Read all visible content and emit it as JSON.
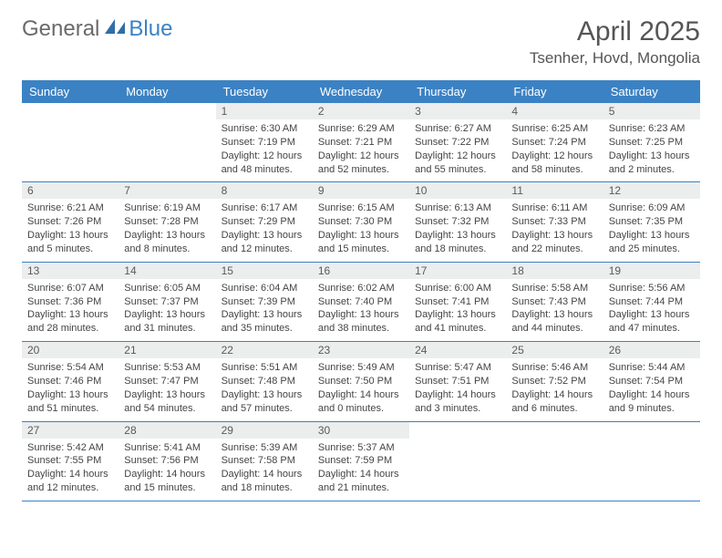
{
  "logo": {
    "text1": "General",
    "text2": "Blue",
    "icon_color": "#2f6ea8"
  },
  "header": {
    "month": "April 2025",
    "location": "Tsenher, Hovd, Mongolia"
  },
  "colors": {
    "header_bg": "#3b82c4",
    "header_text": "#ffffff",
    "daynum_bg": "#eceded",
    "border": "#3b82c4",
    "body_text": "#444444"
  },
  "day_names": [
    "Sunday",
    "Monday",
    "Tuesday",
    "Wednesday",
    "Thursday",
    "Friday",
    "Saturday"
  ],
  "weeks": [
    [
      null,
      null,
      {
        "n": "1",
        "sr": "6:30 AM",
        "ss": "7:19 PM",
        "dl": "12 hours and 48 minutes."
      },
      {
        "n": "2",
        "sr": "6:29 AM",
        "ss": "7:21 PM",
        "dl": "12 hours and 52 minutes."
      },
      {
        "n": "3",
        "sr": "6:27 AM",
        "ss": "7:22 PM",
        "dl": "12 hours and 55 minutes."
      },
      {
        "n": "4",
        "sr": "6:25 AM",
        "ss": "7:24 PM",
        "dl": "12 hours and 58 minutes."
      },
      {
        "n": "5",
        "sr": "6:23 AM",
        "ss": "7:25 PM",
        "dl": "13 hours and 2 minutes."
      }
    ],
    [
      {
        "n": "6",
        "sr": "6:21 AM",
        "ss": "7:26 PM",
        "dl": "13 hours and 5 minutes."
      },
      {
        "n": "7",
        "sr": "6:19 AM",
        "ss": "7:28 PM",
        "dl": "13 hours and 8 minutes."
      },
      {
        "n": "8",
        "sr": "6:17 AM",
        "ss": "7:29 PM",
        "dl": "13 hours and 12 minutes."
      },
      {
        "n": "9",
        "sr": "6:15 AM",
        "ss": "7:30 PM",
        "dl": "13 hours and 15 minutes."
      },
      {
        "n": "10",
        "sr": "6:13 AM",
        "ss": "7:32 PM",
        "dl": "13 hours and 18 minutes."
      },
      {
        "n": "11",
        "sr": "6:11 AM",
        "ss": "7:33 PM",
        "dl": "13 hours and 22 minutes."
      },
      {
        "n": "12",
        "sr": "6:09 AM",
        "ss": "7:35 PM",
        "dl": "13 hours and 25 minutes."
      }
    ],
    [
      {
        "n": "13",
        "sr": "6:07 AM",
        "ss": "7:36 PM",
        "dl": "13 hours and 28 minutes."
      },
      {
        "n": "14",
        "sr": "6:05 AM",
        "ss": "7:37 PM",
        "dl": "13 hours and 31 minutes."
      },
      {
        "n": "15",
        "sr": "6:04 AM",
        "ss": "7:39 PM",
        "dl": "13 hours and 35 minutes."
      },
      {
        "n": "16",
        "sr": "6:02 AM",
        "ss": "7:40 PM",
        "dl": "13 hours and 38 minutes."
      },
      {
        "n": "17",
        "sr": "6:00 AM",
        "ss": "7:41 PM",
        "dl": "13 hours and 41 minutes."
      },
      {
        "n": "18",
        "sr": "5:58 AM",
        "ss": "7:43 PM",
        "dl": "13 hours and 44 minutes."
      },
      {
        "n": "19",
        "sr": "5:56 AM",
        "ss": "7:44 PM",
        "dl": "13 hours and 47 minutes."
      }
    ],
    [
      {
        "n": "20",
        "sr": "5:54 AM",
        "ss": "7:46 PM",
        "dl": "13 hours and 51 minutes."
      },
      {
        "n": "21",
        "sr": "5:53 AM",
        "ss": "7:47 PM",
        "dl": "13 hours and 54 minutes."
      },
      {
        "n": "22",
        "sr": "5:51 AM",
        "ss": "7:48 PM",
        "dl": "13 hours and 57 minutes."
      },
      {
        "n": "23",
        "sr": "5:49 AM",
        "ss": "7:50 PM",
        "dl": "14 hours and 0 minutes."
      },
      {
        "n": "24",
        "sr": "5:47 AM",
        "ss": "7:51 PM",
        "dl": "14 hours and 3 minutes."
      },
      {
        "n": "25",
        "sr": "5:46 AM",
        "ss": "7:52 PM",
        "dl": "14 hours and 6 minutes."
      },
      {
        "n": "26",
        "sr": "5:44 AM",
        "ss": "7:54 PM",
        "dl": "14 hours and 9 minutes."
      }
    ],
    [
      {
        "n": "27",
        "sr": "5:42 AM",
        "ss": "7:55 PM",
        "dl": "14 hours and 12 minutes."
      },
      {
        "n": "28",
        "sr": "5:41 AM",
        "ss": "7:56 PM",
        "dl": "14 hours and 15 minutes."
      },
      {
        "n": "29",
        "sr": "5:39 AM",
        "ss": "7:58 PM",
        "dl": "14 hours and 18 minutes."
      },
      {
        "n": "30",
        "sr": "5:37 AM",
        "ss": "7:59 PM",
        "dl": "14 hours and 21 minutes."
      },
      null,
      null,
      null
    ]
  ],
  "labels": {
    "sunrise": "Sunrise:",
    "sunset": "Sunset:",
    "daylight": "Daylight:"
  }
}
